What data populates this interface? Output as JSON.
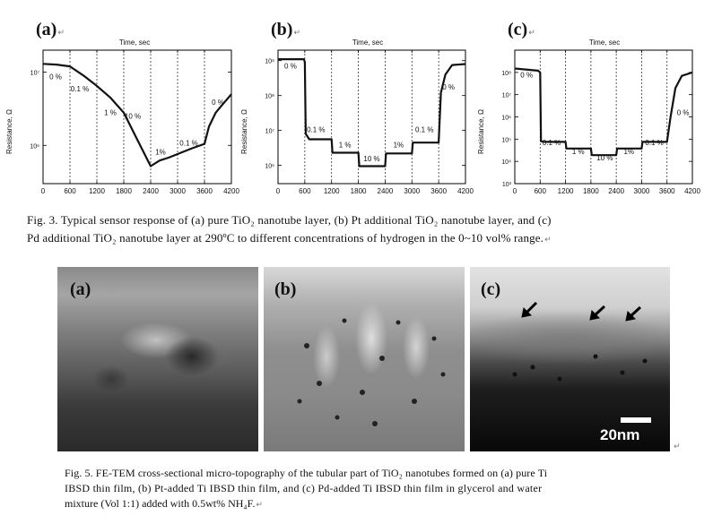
{
  "fig3": {
    "panels": [
      {
        "label": "(a)",
        "xlabel": "Time, sec",
        "ylabel": "Resistance, Ω"
      },
      {
        "label": "(b)",
        "xlabel": "Time, sec",
        "ylabel": "Resistance, Ω"
      },
      {
        "label": "(c)",
        "xlabel": "Time, sec",
        "ylabel": "Resistance, Ω"
      }
    ],
    "caption_line1": "Fig. 3.  Typical sensor response of (a) pure TiO₂ nanotube layer, (b) Pt additional TiO₂ nanotube layer, and (c)",
    "caption_line2": "Pd additional TiO₂ nanotube layer at 290ºC to different concentrations of hydrogen in the 0~10 vol% range."
  },
  "chart_data": [
    {
      "type": "line",
      "title": "(a)",
      "xlabel": "Time, sec",
      "ylabel": "Resistance, Ω",
      "xlim": [
        0,
        4200
      ],
      "xticks": [
        0,
        600,
        1200,
        1800,
        2400,
        3000,
        3600,
        4200
      ],
      "yscale": "log",
      "ylim": [
        300000,
        20000000
      ],
      "yticks": [
        {
          "value": 1000000,
          "label": "10⁶"
        },
        {
          "value": 10000000,
          "label": "10⁷"
        }
      ],
      "dividers": [
        600,
        1200,
        1800,
        2400,
        3000,
        3600
      ],
      "annotations": [
        {
          "text": "0 %",
          "x": 280,
          "y": 8000000
        },
        {
          "text": "0.1 %",
          "x": 820,
          "y": 5500000
        },
        {
          "text": "1 %",
          "x": 1500,
          "y": 2600000
        },
        {
          "text": "10 %",
          "x": 2000,
          "y": 2300000
        },
        {
          "text": "1%",
          "x": 2620,
          "y": 750000
        },
        {
          "text": "0.1 %",
          "x": 3250,
          "y": 1000000
        },
        {
          "text": "0 %",
          "x": 3900,
          "y": 3600000
        }
      ],
      "x": [
        0,
        300,
        600,
        900,
        1200,
        1500,
        1800,
        2100,
        2400,
        2600,
        2800,
        3000,
        3300,
        3600,
        3700,
        3850,
        4000,
        4200
      ],
      "y": [
        13000000,
        12700000,
        12000000,
        9000000,
        6500000,
        4500000,
        2800000,
        1200000,
        520000,
        620000,
        680000,
        760000,
        900000,
        1050000,
        1800000,
        2800000,
        3600000,
        5000000
      ]
    },
    {
      "type": "line",
      "title": "(b)",
      "xlabel": "Time, sec",
      "ylabel": "Resistance, Ω",
      "xlim": [
        0,
        4200
      ],
      "xticks": [
        0,
        600,
        1200,
        1800,
        2400,
        3000,
        3600,
        4200
      ],
      "yscale": "log",
      "ylim": [
        300000,
        2000000000
      ],
      "yticks": [
        {
          "value": 1000000,
          "label": "10⁶"
        },
        {
          "value": 10000000,
          "label": "10⁷"
        },
        {
          "value": 100000000,
          "label": "10⁸"
        },
        {
          "value": 1000000000,
          "label": "10⁹"
        }
      ],
      "dividers": [
        600,
        1200,
        1800,
        2400,
        3000,
        3600
      ],
      "annotations": [
        {
          "text": "0 %",
          "x": 280,
          "y": 600000000
        },
        {
          "text": "0.1 %",
          "x": 850,
          "y": 9000000
        },
        {
          "text": "1 %",
          "x": 1500,
          "y": 3300000
        },
        {
          "text": "10 %",
          "x": 2100,
          "y": 1300000
        },
        {
          "text": "1%",
          "x": 2700,
          "y": 3300000
        },
        {
          "text": "0.1 %",
          "x": 3280,
          "y": 9000000
        },
        {
          "text": "0 %",
          "x": 3820,
          "y": 150000000
        }
      ],
      "x": [
        0,
        580,
        600,
        620,
        700,
        1200,
        1220,
        1800,
        1820,
        2400,
        2420,
        3000,
        3020,
        3600,
        3650,
        3750,
        3900,
        4200
      ],
      "y": [
        1100000000,
        1100000000,
        900000000,
        8000000,
        5600000,
        5600000,
        2300000,
        2300000,
        950000,
        950000,
        2200000,
        2200000,
        4500000,
        4500000,
        120000000,
        400000000,
        750000000,
        800000000
      ]
    },
    {
      "type": "line",
      "title": "(c)",
      "xlabel": "Time, sec",
      "ylabel": "Resistance, Ω",
      "xlim": [
        0,
        4200
      ],
      "xticks": [
        0,
        600,
        1200,
        1800,
        2400,
        3000,
        3600,
        4200
      ],
      "yscale": "log",
      "ylim": [
        1000,
        1000000000
      ],
      "yticks": [
        {
          "value": 1000,
          "label": "10³"
        },
        {
          "value": 10000,
          "label": "10⁴"
        },
        {
          "value": 100000,
          "label": "10⁵"
        },
        {
          "value": 1000000,
          "label": "10⁶"
        },
        {
          "value": 10000000,
          "label": "10⁷"
        },
        {
          "value": 100000000,
          "label": "10⁸"
        }
      ],
      "dividers": [
        600,
        1200,
        1800,
        2400,
        3000,
        3600
      ],
      "annotations": [
        {
          "text": "0 %",
          "x": 280,
          "y": 60000000
        },
        {
          "text": "0.1 %",
          "x": 870,
          "y": 55000
        },
        {
          "text": "1 %",
          "x": 1500,
          "y": 21000
        },
        {
          "text": "10 %",
          "x": 2130,
          "y": 11000
        },
        {
          "text": "1%",
          "x": 2700,
          "y": 21000
        },
        {
          "text": "0.1 %",
          "x": 3300,
          "y": 55000
        },
        {
          "text": "0 %",
          "x": 3980,
          "y": 1200000
        }
      ],
      "x": [
        0,
        550,
        600,
        620,
        700,
        1200,
        1220,
        1800,
        1820,
        2400,
        2420,
        3000,
        3020,
        3600,
        3680,
        3800,
        3950,
        4200
      ],
      "y": [
        150000000,
        120000000,
        100000000,
        80000,
        75000,
        75000,
        38000,
        38000,
        19000,
        19000,
        38000,
        38000,
        75000,
        75000,
        900000,
        20000000,
        70000000,
        100000000
      ]
    }
  ],
  "fig5": {
    "panels": [
      {
        "label": "(a)"
      },
      {
        "label": "(b)"
      },
      {
        "label": "(c)",
        "scalebar": "20nm"
      }
    ],
    "caption_line1": "Fig. 5.  FE-TEM cross-sectional micro-topography of the tubular part of TiO₂ nanotubes formed on (a) pure Ti",
    "caption_line2": "IBSD thin film, (b) Pt-added Ti IBSD thin film, and (c) Pd-added Ti IBSD thin film in glycerol and water",
    "caption_line3": "mixture (Vol 1:1) added with 0.5wt% NH₄F."
  },
  "colors": {
    "line": "#111111",
    "divider": "#333333"
  }
}
